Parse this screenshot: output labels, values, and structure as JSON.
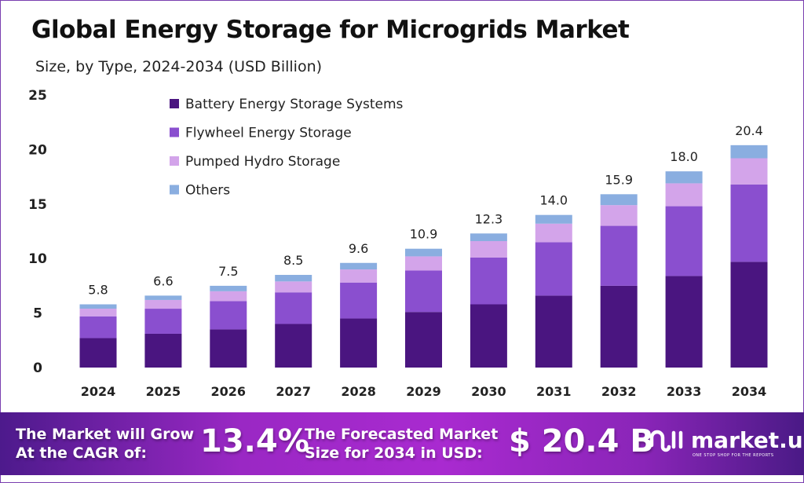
{
  "title": "Global Energy Storage for Microgrids Market",
  "subtitle": "Size, by Type, 2024-2034 (USD Billion)",
  "chart_data": {
    "type": "bar",
    "stacked": true,
    "title": "Global Energy Storage for Microgrids Market",
    "subtitle": "Size, by Type, 2024-2034 (USD Billion)",
    "categories": [
      "2024",
      "2025",
      "2026",
      "2027",
      "2028",
      "2029",
      "2030",
      "2031",
      "2032",
      "2033",
      "2034"
    ],
    "series": [
      {
        "name": "Battery Energy Storage Systems",
        "color": "#4a1580",
        "values": [
          2.7,
          3.1,
          3.5,
          4.0,
          4.5,
          5.1,
          5.8,
          6.6,
          7.5,
          8.4,
          9.7
        ]
      },
      {
        "name": "Flywheel Energy Storage",
        "color": "#8a4fcf",
        "values": [
          2.0,
          2.3,
          2.6,
          2.9,
          3.3,
          3.8,
          4.3,
          4.9,
          5.5,
          6.4,
          7.1
        ]
      },
      {
        "name": "Pumped Hydro Storage",
        "color": "#d3a4ea",
        "values": [
          0.7,
          0.8,
          0.9,
          1.0,
          1.2,
          1.3,
          1.5,
          1.7,
          1.9,
          2.1,
          2.4
        ]
      },
      {
        "name": "Others",
        "color": "#8aaee0",
        "values": [
          0.4,
          0.4,
          0.5,
          0.6,
          0.6,
          0.7,
          0.7,
          0.8,
          1.0,
          1.1,
          1.2
        ]
      }
    ],
    "totals": [
      "5.8",
      "6.6",
      "7.5",
      "8.5",
      "9.6",
      "10.9",
      "12.3",
      "14.0",
      "15.9",
      "18.0",
      "20.4"
    ],
    "ylim": [
      0,
      25
    ],
    "yticks": [
      "0",
      "5",
      "10",
      "15",
      "20",
      "25"
    ],
    "grid": false,
    "legend": "top-left"
  },
  "footer": {
    "cagr_label": [
      "The Market will Grow",
      "At the CAGR of:"
    ],
    "cagr_value": "13.4%",
    "forecast_label": [
      "The Forecasted Market",
      "Size for 2034 in USD:"
    ],
    "forecast_value": "$ 20.4 B",
    "brand": "market.us",
    "brand_tagline": "ONE STOP SHOP FOR THE REPORTS"
  }
}
